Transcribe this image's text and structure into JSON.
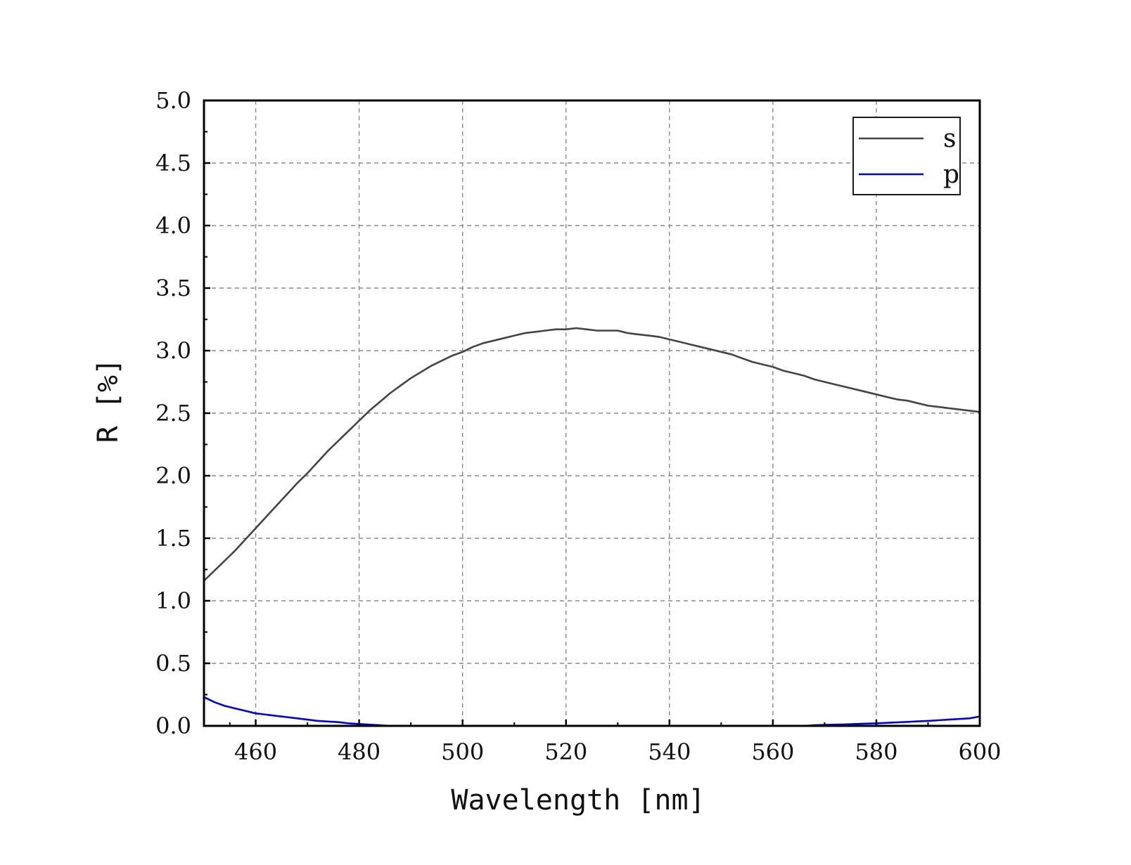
{
  "chart_data": {
    "type": "line",
    "title": "",
    "xlabel": "Wavelength [nm]",
    "ylabel": "R [%]",
    "xlim": [
      450,
      600
    ],
    "ylim": [
      0,
      5
    ],
    "xticks": [
      460,
      480,
      500,
      520,
      540,
      560,
      580,
      600
    ],
    "xtick_labels": [
      "460",
      "480",
      "500",
      "520",
      "540",
      "560",
      "580",
      "600"
    ],
    "yticks": [
      0,
      0.5,
      1.0,
      1.5,
      2.0,
      2.5,
      3.0,
      3.5,
      4.0,
      4.5,
      5.0
    ],
    "ytick_labels": [
      "0.0",
      "0.5",
      "1.0",
      "1.5",
      "2.0",
      "2.5",
      "3.0",
      "3.5",
      "4.0",
      "4.5",
      "5.0"
    ],
    "grid": true,
    "legend_position": "top-right",
    "series": [
      {
        "name": "s",
        "color": "#444444",
        "x": [
          450,
          452,
          454,
          456,
          458,
          460,
          462,
          464,
          466,
          468,
          470,
          472,
          474,
          476,
          478,
          480,
          482,
          484,
          486,
          488,
          490,
          492,
          494,
          496,
          498,
          500,
          502,
          504,
          506,
          508,
          510,
          512,
          514,
          516,
          518,
          520,
          522,
          524,
          526,
          528,
          530,
          532,
          534,
          536,
          538,
          540,
          542,
          544,
          546,
          548,
          550,
          552,
          554,
          556,
          558,
          560,
          562,
          564,
          566,
          568,
          570,
          572,
          574,
          576,
          578,
          580,
          582,
          584,
          586,
          588,
          590,
          592,
          594,
          596,
          598,
          600
        ],
        "values": [
          1.16,
          1.24,
          1.32,
          1.4,
          1.49,
          1.58,
          1.67,
          1.76,
          1.85,
          1.94,
          2.02,
          2.11,
          2.2,
          2.28,
          2.36,
          2.44,
          2.52,
          2.59,
          2.66,
          2.72,
          2.78,
          2.83,
          2.88,
          2.92,
          2.96,
          2.99,
          3.03,
          3.06,
          3.08,
          3.1,
          3.12,
          3.14,
          3.15,
          3.16,
          3.17,
          3.17,
          3.18,
          3.17,
          3.16,
          3.16,
          3.16,
          3.14,
          3.13,
          3.12,
          3.11,
          3.09,
          3.07,
          3.05,
          3.03,
          3.01,
          2.99,
          2.97,
          2.94,
          2.91,
          2.89,
          2.87,
          2.84,
          2.82,
          2.8,
          2.77,
          2.75,
          2.73,
          2.71,
          2.69,
          2.67,
          2.65,
          2.63,
          2.61,
          2.6,
          2.58,
          2.56,
          2.55,
          2.54,
          2.53,
          2.52,
          2.51
        ]
      },
      {
        "name": "p",
        "color": "#0000dd",
        "x": [
          450,
          452,
          454,
          456,
          458,
          460,
          462,
          464,
          466,
          468,
          470,
          472,
          474,
          476,
          478,
          480,
          482,
          484,
          486,
          490,
          500,
          510,
          520,
          530,
          540,
          550,
          560,
          566,
          568,
          570,
          572,
          574,
          576,
          578,
          580,
          582,
          584,
          586,
          588,
          590,
          592,
          594,
          596,
          598,
          600
        ],
        "values": [
          0.23,
          0.19,
          0.16,
          0.14,
          0.12,
          0.1,
          0.09,
          0.08,
          0.07,
          0.06,
          0.05,
          0.04,
          0.035,
          0.03,
          0.02,
          0.015,
          0.01,
          0.005,
          0.0,
          0.0,
          0.0,
          0.0,
          0.0,
          0.0,
          0.0,
          0.0,
          0.0,
          0.0,
          0.005,
          0.008,
          0.01,
          0.012,
          0.015,
          0.018,
          0.02,
          0.024,
          0.028,
          0.032,
          0.036,
          0.04,
          0.045,
          0.05,
          0.055,
          0.06,
          0.075
        ]
      }
    ]
  }
}
